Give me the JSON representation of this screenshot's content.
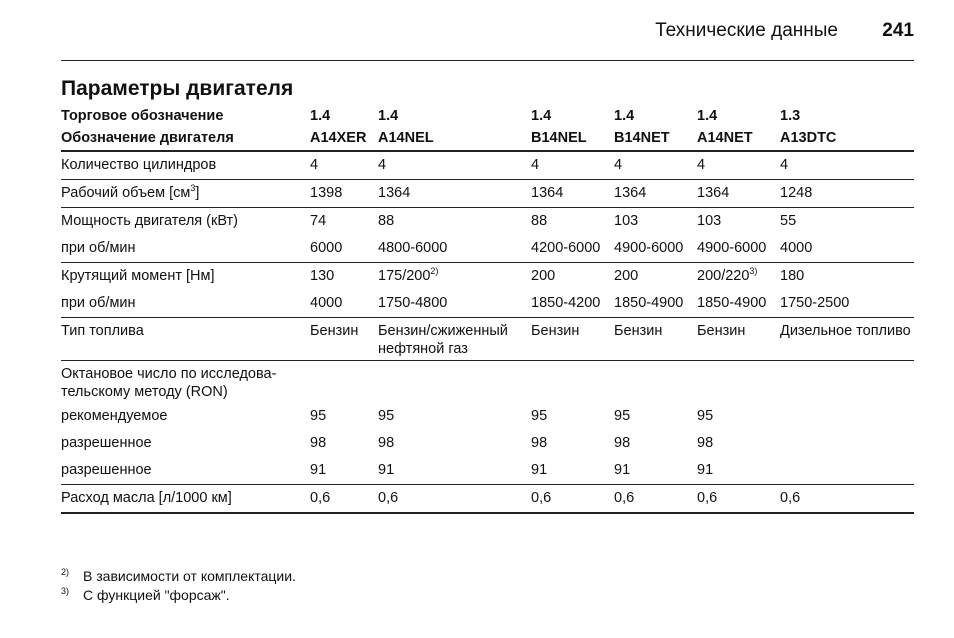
{
  "header": {
    "section_title": "Технические данные",
    "page_number": "241"
  },
  "heading": "Параметры двигателя",
  "table": {
    "header_rows": [
      [
        "Торговое обозначение",
        "1.4",
        "1.4",
        "1.4",
        "1.4",
        "1.4",
        "1.3"
      ],
      [
        "Обозначение двигателя",
        "A14XER",
        "A14NEL",
        "B14NEL",
        "B14NET",
        "A14NET",
        "A13DTC"
      ]
    ],
    "rows": [
      {
        "border": "b",
        "cells": [
          {
            "t": "Количество цилиндров"
          },
          {
            "t": "4"
          },
          {
            "t": "4"
          },
          {
            "t": "4"
          },
          {
            "t": "4"
          },
          {
            "t": "4"
          },
          {
            "t": "4"
          }
        ]
      },
      {
        "border": "b",
        "cells": [
          {
            "t": "Рабочий объем [см",
            "s": "3",
            "a": "]"
          },
          {
            "t": "1398"
          },
          {
            "t": "1364"
          },
          {
            "t": "1364"
          },
          {
            "t": "1364"
          },
          {
            "t": "1364"
          },
          {
            "t": "1248"
          }
        ]
      },
      {
        "border": "",
        "cells": [
          {
            "t": "Мощность двигателя (кВт)"
          },
          {
            "t": "74"
          },
          {
            "t": "88"
          },
          {
            "t": "88"
          },
          {
            "t": "103"
          },
          {
            "t": "103"
          },
          {
            "t": "55"
          }
        ]
      },
      {
        "border": "b",
        "cells": [
          {
            "t": "при об/мин"
          },
          {
            "t": "6000"
          },
          {
            "t": "4800-6000"
          },
          {
            "t": "4200-6000"
          },
          {
            "t": "4900-6000"
          },
          {
            "t": "4900-6000"
          },
          {
            "t": "4000"
          }
        ]
      },
      {
        "border": "",
        "cells": [
          {
            "t": "Крутящий момент [Нм]"
          },
          {
            "t": "130"
          },
          {
            "t": "175/200",
            "s": "2)"
          },
          {
            "t": "200"
          },
          {
            "t": "200"
          },
          {
            "t": "200/220",
            "s": "3)"
          },
          {
            "t": "180"
          }
        ]
      },
      {
        "border": "b",
        "cells": [
          {
            "t": "при об/мин"
          },
          {
            "t": "4000"
          },
          {
            "t": "1750-4800"
          },
          {
            "t": "1850-4200"
          },
          {
            "t": "1850-4900"
          },
          {
            "t": "1850-4900"
          },
          {
            "t": "1750-2500"
          }
        ]
      },
      {
        "border": "b",
        "tall": true,
        "cells": [
          {
            "t": "Тип топлива"
          },
          {
            "t": "Бензин"
          },
          {
            "t": "Бензин/сжиженный нефтяной газ"
          },
          {
            "t": "Бензин"
          },
          {
            "t": "Бензин"
          },
          {
            "t": "Бензин"
          },
          {
            "t": "Дизельное топливо"
          }
        ]
      },
      {
        "border": "",
        "tall": true,
        "cells": [
          {
            "t": "Октановое число по исследова-тельскому методу (RON)"
          },
          {
            "t": ""
          },
          {
            "t": ""
          },
          {
            "t": ""
          },
          {
            "t": ""
          },
          {
            "t": ""
          },
          {
            "t": ""
          }
        ]
      },
      {
        "border": "",
        "cells": [
          {
            "t": "рекомендуемое"
          },
          {
            "t": "95"
          },
          {
            "t": "95"
          },
          {
            "t": "95"
          },
          {
            "t": "95"
          },
          {
            "t": "95"
          },
          {
            "t": ""
          }
        ]
      },
      {
        "border": "",
        "cells": [
          {
            "t": "разрешенное"
          },
          {
            "t": "98"
          },
          {
            "t": "98"
          },
          {
            "t": "98"
          },
          {
            "t": "98"
          },
          {
            "t": "98"
          },
          {
            "t": ""
          }
        ]
      },
      {
        "border": "b",
        "cells": [
          {
            "t": "разрешенное"
          },
          {
            "t": "91"
          },
          {
            "t": "91"
          },
          {
            "t": "91"
          },
          {
            "t": "91"
          },
          {
            "t": "91"
          },
          {
            "t": ""
          }
        ]
      },
      {
        "border": "bb",
        "cells": [
          {
            "t": "Расход масла [л/1000 км]"
          },
          {
            "t": "0,6"
          },
          {
            "t": "0,6"
          },
          {
            "t": "0,6"
          },
          {
            "t": "0,6"
          },
          {
            "t": "0,6"
          },
          {
            "t": "0,6"
          }
        ]
      }
    ]
  },
  "footnotes": [
    {
      "mark": "2)",
      "text": "В зависимости от комплектации."
    },
    {
      "mark": "3)",
      "text": "С функцией \"форсаж\"."
    }
  ]
}
